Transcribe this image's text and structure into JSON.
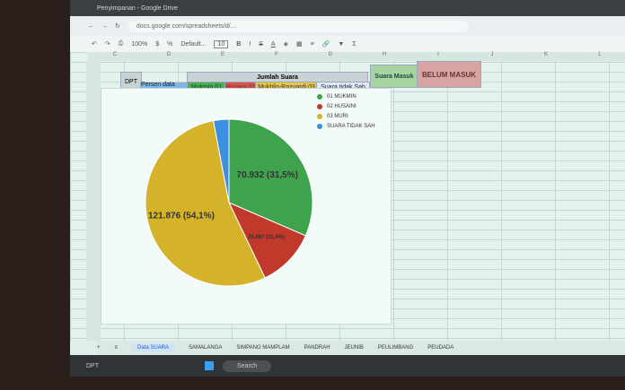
{
  "browser": {
    "tab_title": "Penyimpanan - Google Drive",
    "url": "docs.google.com/spreadsheets/d/…"
  },
  "toolbar": {
    "zoom": "100%",
    "font": "Default...",
    "font_size": "10"
  },
  "columns": [
    "C",
    "D",
    "E",
    "F",
    "G",
    "H",
    "I",
    "J",
    "K",
    "L"
  ],
  "headers": {
    "dpt": "DPT",
    "persen": "Persen data masuk",
    "jumlah_suara": "Jumlah Suara",
    "c1": "Mukmin 01",
    "c2": "Husaini 02",
    "c3": "Mukhlis-Razuardi 03",
    "tidak_sah": "Suara tidak Sah",
    "masuk": "Suara Masuk",
    "belum": "BELUM MASUK"
  },
  "colors": {
    "green": "#3fa34d",
    "red": "#c0392b",
    "yellow": "#d4b22a",
    "blue": "#3b8fe0"
  },
  "chart_data": {
    "type": "pie",
    "slices": [
      {
        "name": "01 MUKMIN",
        "value": 70932,
        "label": "70.932 (31,5%)",
        "percent": 31.5,
        "color": "#3fa34d"
      },
      {
        "name": "02 HUSAINI",
        "value": 25667,
        "label": "25.667 (11,4%)",
        "percent": 11.4,
        "color": "#c0392b"
      },
      {
        "name": "03 MURI",
        "value": 121876,
        "label": "121.876 (54,1%)",
        "percent": 54.1,
        "color": "#d4b22a"
      },
      {
        "name": "SUARA TIDAK SAH",
        "label": "",
        "percent": 3.0,
        "color": "#3b8fe0"
      }
    ],
    "legend": "top-right"
  },
  "sheets": [
    "Data SUARA",
    "SAMALANGA",
    "SIMPANG MAMPLAM",
    "PANDRAH",
    "JEUNIB",
    "PEULIMBANG",
    "PEUDADA"
  ],
  "taskbar": {
    "search": "Search",
    "user": "DPT"
  }
}
